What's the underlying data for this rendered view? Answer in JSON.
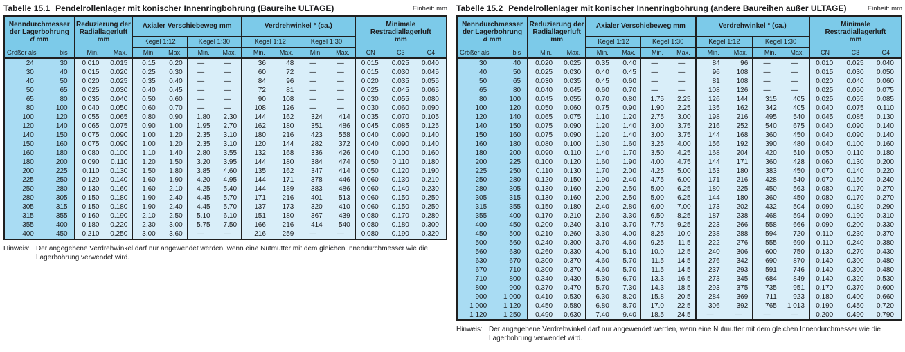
{
  "colors": {
    "header-bg": "#7ccae9",
    "dim-col-bg": "#a9dcf3",
    "cell-bg": "#d9eef9",
    "border": "#1f1f1f",
    "text": "#1d1d1f",
    "page-bg": "#ffffff"
  },
  "header_labels": {
    "bore_line1": "Nenndurchmesser",
    "bore_line2": "der Lagerbohrung",
    "bore_symbol": "d",
    "bore_unit": "mm",
    "bore_sub_greater": "Größer als",
    "bore_sub_upto": "bis",
    "reduction_line1": "Reduzierung der",
    "reduction_line2": "Radiallagerluft",
    "reduction_line3": "mm",
    "axial_title": "Axialer Verschiebeweg mm",
    "angle_title": "Verdrehwinkel ° (ca.)",
    "kegel_112": "Kegel 1:12",
    "kegel_130": "Kegel 1:30",
    "min": "Min.",
    "max": "Max.",
    "clearance_line1": "Minimale",
    "clearance_line2": "Restradiallagerluft",
    "clearance_line3": "mm",
    "clearance_cn": "CN",
    "clearance_c3": "C3",
    "clearance_c4": "C4"
  },
  "tables": [
    {
      "title_prefix": "Tabelle 15.1",
      "title": "Pendelrollenlager mit konischer Innenringbohrung (Baureihe ULTAGE)",
      "unit": "Einheit: mm",
      "note_label": "Hinweis:",
      "note": "Der angegebene Verdrehwinkel darf nur angewendet werden, wenn eine Nutmutter mit dem gleichen Innendurchmesser wie die Lagerbohrung verwendet wird.",
      "rows": [
        [
          "24",
          "30",
          "0.010",
          "0.015",
          "0.15",
          "0.20",
          "—",
          "—",
          "36",
          "48",
          "—",
          "—",
          "0.015",
          "0.025",
          "0.040"
        ],
        [
          "30",
          "40",
          "0.015",
          "0.020",
          "0.25",
          "0.30",
          "—",
          "—",
          "60",
          "72",
          "—",
          "—",
          "0.015",
          "0.030",
          "0.045"
        ],
        [
          "40",
          "50",
          "0.020",
          "0.025",
          "0.35",
          "0.40",
          "—",
          "—",
          "84",
          "96",
          "—",
          "—",
          "0.020",
          "0.035",
          "0.055"
        ],
        [
          "50",
          "65",
          "0.025",
          "0.030",
          "0.40",
          "0.45",
          "—",
          "—",
          "72",
          "81",
          "—",
          "—",
          "0.025",
          "0.045",
          "0.065"
        ],
        [
          "65",
          "80",
          "0.035",
          "0.040",
          "0.50",
          "0.60",
          "—",
          "—",
          "90",
          "108",
          "—",
          "—",
          "0.030",
          "0.055",
          "0.080"
        ],
        [
          "80",
          "100",
          "0.040",
          "0.050",
          "0.60",
          "0.70",
          "—",
          "—",
          "108",
          "126",
          "—",
          "—",
          "0.030",
          "0.060",
          "0.090"
        ],
        [
          "100",
          "120",
          "0.055",
          "0.065",
          "0.80",
          "0.90",
          "1.80",
          "2.30",
          "144",
          "162",
          "324",
          "414",
          "0.035",
          "0.070",
          "0.105"
        ],
        [
          "120",
          "140",
          "0.065",
          "0.075",
          "0.90",
          "1.00",
          "1.95",
          "2.70",
          "162",
          "180",
          "351",
          "486",
          "0.045",
          "0.085",
          "0.125"
        ],
        [
          "140",
          "150",
          "0.075",
          "0.090",
          "1.00",
          "1.20",
          "2.35",
          "3.10",
          "180",
          "216",
          "423",
          "558",
          "0.040",
          "0.090",
          "0.140"
        ],
        [
          "150",
          "160",
          "0.075",
          "0.090",
          "1.00",
          "1.20",
          "2.35",
          "3.10",
          "120",
          "144",
          "282",
          "372",
          "0.040",
          "0.090",
          "0.140"
        ],
        [
          "160",
          "180",
          "0.080",
          "0.100",
          "1.10",
          "1.40",
          "2.80",
          "3.55",
          "132",
          "168",
          "336",
          "426",
          "0.040",
          "0.100",
          "0.160"
        ],
        [
          "180",
          "200",
          "0.090",
          "0.110",
          "1.20",
          "1.50",
          "3.20",
          "3.95",
          "144",
          "180",
          "384",
          "474",
          "0.050",
          "0.110",
          "0.180"
        ],
        [
          "200",
          "225",
          "0.110",
          "0.130",
          "1.50",
          "1.80",
          "3.85",
          "4.60",
          "135",
          "162",
          "347",
          "414",
          "0.050",
          "0.120",
          "0.190"
        ],
        [
          "225",
          "250",
          "0.120",
          "0.140",
          "1.60",
          "1.90",
          "4.20",
          "4.95",
          "144",
          "171",
          "378",
          "446",
          "0.060",
          "0.130",
          "0.210"
        ],
        [
          "250",
          "280",
          "0.130",
          "0.160",
          "1.60",
          "2.10",
          "4.25",
          "5.40",
          "144",
          "189",
          "383",
          "486",
          "0.060",
          "0.140",
          "0.230"
        ],
        [
          "280",
          "305",
          "0.150",
          "0.180",
          "1.90",
          "2.40",
          "4.45",
          "5.70",
          "171",
          "216",
          "401",
          "513",
          "0.060",
          "0.150",
          "0.250"
        ],
        [
          "305",
          "315",
          "0.150",
          "0.180",
          "1.90",
          "2.40",
          "4.45",
          "5.70",
          "137",
          "173",
          "320",
          "410",
          "0.060",
          "0.150",
          "0.250"
        ],
        [
          "315",
          "355",
          "0.160",
          "0.190",
          "2.10",
          "2.50",
          "5.10",
          "6.10",
          "151",
          "180",
          "367",
          "439",
          "0.080",
          "0.170",
          "0.280"
        ],
        [
          "355",
          "400",
          "0.180",
          "0.220",
          "2.30",
          "3.00",
          "5.75",
          "7.50",
          "166",
          "216",
          "414",
          "540",
          "0.080",
          "0.180",
          "0.300"
        ],
        [
          "400",
          "450",
          "0.210",
          "0.250",
          "3.00",
          "3.60",
          "—",
          "—",
          "216",
          "259",
          "—",
          "—",
          "0.080",
          "0.190",
          "0.320"
        ]
      ]
    },
    {
      "title_prefix": "Tabelle 15.2",
      "title": "Pendelrollenlager mit konischer Innenringbohrung (andere Baureihen außer ULTAGE)",
      "unit": "Einheit: mm",
      "note_label": "Hinweis:",
      "note": "Der angegebene Verdrehwinkel darf nur angewendet werden, wenn eine Nutmutter mit dem gleichen Innendurchmesser wie die Lagerbohrung verwendet wird.",
      "rows": [
        [
          "30",
          "40",
          "0.020",
          "0.025",
          "0.35",
          "0.40",
          "—",
          "—",
          "84",
          "96",
          "—",
          "—",
          "0.010",
          "0.025",
          "0.040"
        ],
        [
          "40",
          "50",
          "0.025",
          "0.030",
          "0.40",
          "0.45",
          "—",
          "—",
          "96",
          "108",
          "—",
          "—",
          "0.015",
          "0.030",
          "0.050"
        ],
        [
          "50",
          "65",
          "0.030",
          "0.035",
          "0.45",
          "0.60",
          "—",
          "—",
          "81",
          "108",
          "—",
          "—",
          "0.020",
          "0.040",
          "0.060"
        ],
        [
          "65",
          "80",
          "0.040",
          "0.045",
          "0.60",
          "0.70",
          "—",
          "—",
          "108",
          "126",
          "—",
          "—",
          "0.025",
          "0.050",
          "0.075"
        ],
        [
          "80",
          "100",
          "0.045",
          "0.055",
          "0.70",
          "0.80",
          "1.75",
          "2.25",
          "126",
          "144",
          "315",
          "405",
          "0.025",
          "0.055",
          "0.085"
        ],
        [
          "100",
          "120",
          "0.050",
          "0.060",
          "0.75",
          "0.90",
          "1.90",
          "2.25",
          "135",
          "162",
          "342",
          "405",
          "0.040",
          "0.075",
          "0.110"
        ],
        [
          "120",
          "140",
          "0.065",
          "0.075",
          "1.10",
          "1.20",
          "2.75",
          "3.00",
          "198",
          "216",
          "495",
          "540",
          "0.045",
          "0.085",
          "0.130"
        ],
        [
          "140",
          "150",
          "0.075",
          "0.090",
          "1.20",
          "1.40",
          "3.00",
          "3.75",
          "216",
          "252",
          "540",
          "675",
          "0.040",
          "0.090",
          "0.140"
        ],
        [
          "150",
          "160",
          "0.075",
          "0.090",
          "1.20",
          "1.40",
          "3.00",
          "3.75",
          "144",
          "168",
          "360",
          "450",
          "0.040",
          "0.090",
          "0.140"
        ],
        [
          "160",
          "180",
          "0.080",
          "0.100",
          "1.30",
          "1.60",
          "3.25",
          "4.00",
          "156",
          "192",
          "390",
          "480",
          "0.040",
          "0.100",
          "0.160"
        ],
        [
          "180",
          "200",
          "0.090",
          "0.110",
          "1.40",
          "1.70",
          "3.50",
          "4.25",
          "168",
          "204",
          "420",
          "510",
          "0.050",
          "0.110",
          "0.180"
        ],
        [
          "200",
          "225",
          "0.100",
          "0.120",
          "1.60",
          "1.90",
          "4.00",
          "4.75",
          "144",
          "171",
          "360",
          "428",
          "0.060",
          "0.130",
          "0.200"
        ],
        [
          "225",
          "250",
          "0.110",
          "0.130",
          "1.70",
          "2.00",
          "4.25",
          "5.00",
          "153",
          "180",
          "383",
          "450",
          "0.070",
          "0.140",
          "0.220"
        ],
        [
          "250",
          "280",
          "0.120",
          "0.150",
          "1.90",
          "2.40",
          "4.75",
          "6.00",
          "171",
          "216",
          "428",
          "540",
          "0.070",
          "0.150",
          "0.240"
        ],
        [
          "280",
          "305",
          "0.130",
          "0.160",
          "2.00",
          "2.50",
          "5.00",
          "6.25",
          "180",
          "225",
          "450",
          "563",
          "0.080",
          "0.170",
          "0.270"
        ],
        [
          "305",
          "315",
          "0.130",
          "0.160",
          "2.00",
          "2.50",
          "5.00",
          "6.25",
          "144",
          "180",
          "360",
          "450",
          "0.080",
          "0.170",
          "0.270"
        ],
        [
          "315",
          "355",
          "0.150",
          "0.180",
          "2.40",
          "2.80",
          "6.00",
          "7.00",
          "173",
          "202",
          "432",
          "504",
          "0.090",
          "0.180",
          "0.290"
        ],
        [
          "355",
          "400",
          "0.170",
          "0.210",
          "2.60",
          "3.30",
          "6.50",
          "8.25",
          "187",
          "238",
          "468",
          "594",
          "0.090",
          "0.190",
          "0.310"
        ],
        [
          "400",
          "450",
          "0.200",
          "0.240",
          "3.10",
          "3.70",
          "7.75",
          "9.25",
          "223",
          "266",
          "558",
          "666",
          "0.090",
          "0.200",
          "0.330"
        ],
        [
          "450",
          "500",
          "0.210",
          "0.260",
          "3.30",
          "4.00",
          "8.25",
          "10.0",
          "238",
          "288",
          "594",
          "720",
          "0.110",
          "0.230",
          "0.370"
        ],
        [
          "500",
          "560",
          "0.240",
          "0.300",
          "3.70",
          "4.60",
          "9.25",
          "11.5",
          "222",
          "276",
          "555",
          "690",
          "0.110",
          "0.240",
          "0.380"
        ],
        [
          "560",
          "630",
          "0.260",
          "0.330",
          "4.00",
          "5.10",
          "10.0",
          "12.5",
          "240",
          "306",
          "600",
          "750",
          "0.130",
          "0.270",
          "0.430"
        ],
        [
          "630",
          "670",
          "0.300",
          "0.370",
          "4.60",
          "5.70",
          "11.5",
          "14.5",
          "276",
          "342",
          "690",
          "870",
          "0.140",
          "0.300",
          "0.480"
        ],
        [
          "670",
          "710",
          "0.300",
          "0.370",
          "4.60",
          "5.70",
          "11.5",
          "14.5",
          "237",
          "293",
          "591",
          "746",
          "0.140",
          "0.300",
          "0.480"
        ],
        [
          "710",
          "800",
          "0.340",
          "0.430",
          "5.30",
          "6.70",
          "13.3",
          "16.5",
          "273",
          "345",
          "684",
          "849",
          "0.140",
          "0.320",
          "0.530"
        ],
        [
          "800",
          "900",
          "0.370",
          "0.470",
          "5.70",
          "7.30",
          "14.3",
          "18.5",
          "293",
          "375",
          "735",
          "951",
          "0.170",
          "0.370",
          "0.600"
        ],
        [
          "900",
          "1 000",
          "0.410",
          "0.530",
          "6.30",
          "8.20",
          "15.8",
          "20.5",
          "284",
          "369",
          "711",
          "923",
          "0.180",
          "0.400",
          "0.660"
        ],
        [
          "1 000",
          "1 120",
          "0.450",
          "0.580",
          "6.80",
          "8.70",
          "17.0",
          "22.5",
          "306",
          "392",
          "765",
          "1 013",
          "0.190",
          "0.450",
          "0.720"
        ],
        [
          "1 120",
          "1 250",
          "0.490",
          "0.630",
          "7.40",
          "9.40",
          "18.5",
          "24.5",
          "—",
          "—",
          "—",
          "—",
          "0.200",
          "0.490",
          "0.790"
        ]
      ]
    }
  ]
}
